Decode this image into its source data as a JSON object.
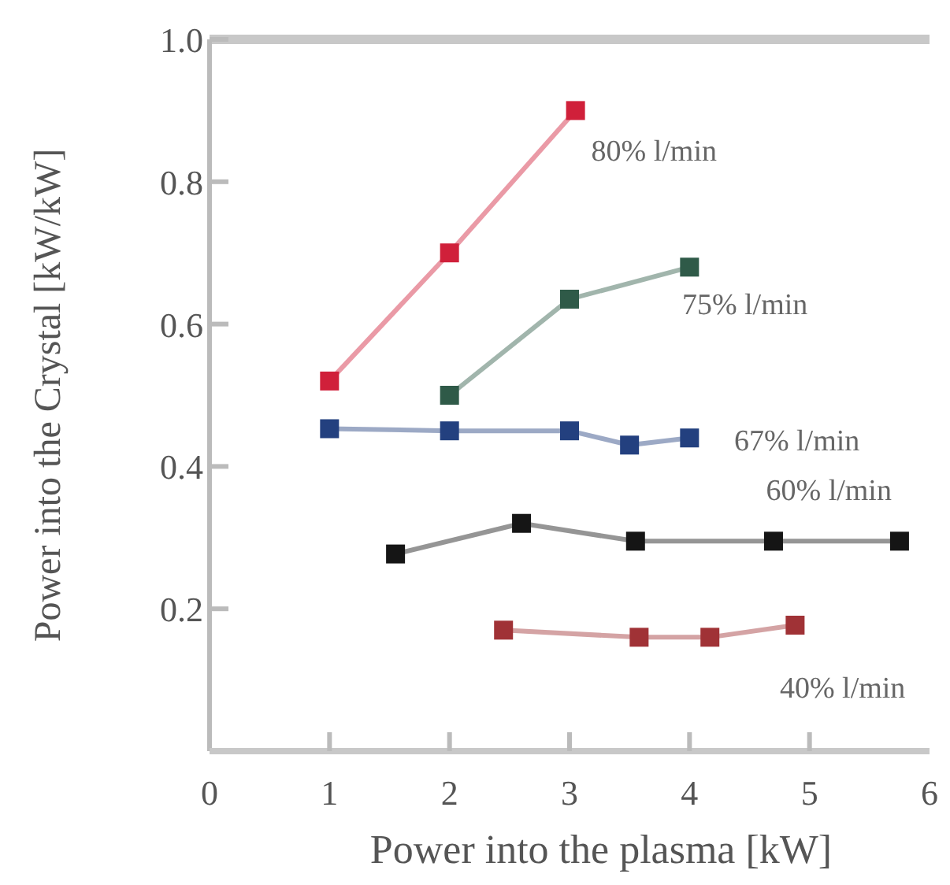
{
  "chart_data": {
    "type": "line",
    "xlabel": "Power into the plasma [kW]",
    "ylabel": "Power into the Crystal [kW/kW]",
    "xlim": [
      0,
      6
    ],
    "xticks": [
      0,
      1,
      2,
      3,
      4,
      5,
      6
    ],
    "ylim": [
      0,
      1.0
    ],
    "yticks": [
      {
        "value": 0.2,
        "label": "0.2"
      },
      {
        "value": 0.4,
        "label": "0.4"
      },
      {
        "value": 0.6,
        "label": "0.6"
      },
      {
        "value": 0.8,
        "label": "0.8"
      },
      {
        "value": 1.0,
        "label": "1.0"
      }
    ],
    "grid": false,
    "marker": "square",
    "line_style": "solid",
    "series": [
      {
        "color": "#d0203a",
        "x": [
          1.0,
          2.0,
          3.05
        ],
        "values": [
          0.52,
          0.7,
          0.9
        ]
      },
      {
        "color": "#2f5a48",
        "x": [
          2.0,
          3.0,
          4.0
        ],
        "values": [
          0.5,
          0.635,
          0.68
        ]
      },
      {
        "color": "#23407f",
        "x": [
          1.0,
          2.0,
          3.0,
          3.5,
          4.0
        ],
        "values": [
          0.453,
          0.45,
          0.45,
          0.43,
          0.44
        ]
      },
      {
        "color": "#151515",
        "x": [
          1.55,
          2.6,
          3.55,
          4.7,
          5.75
        ],
        "values": [
          0.277,
          0.32,
          0.295,
          0.295,
          0.295
        ]
      },
      {
        "color": "#a03236",
        "x": [
          2.45,
          3.58,
          4.17,
          4.88
        ],
        "values": [
          0.17,
          0.16,
          0.16,
          0.177
        ]
      }
    ],
    "annotations": [
      {
        "text": "80% l/min",
        "x": 3.05,
        "y": 0.9
      },
      {
        "text": "75% l/min",
        "x": 4.0,
        "y": 0.68
      },
      {
        "text": "67% l/min",
        "x": 4.0,
        "y": 0.44
      },
      {
        "text": "60% l/min",
        "x": 5.75,
        "y": 0.295
      },
      {
        "text": "40% l/min",
        "x": 4.88,
        "y": 0.177
      }
    ]
  }
}
